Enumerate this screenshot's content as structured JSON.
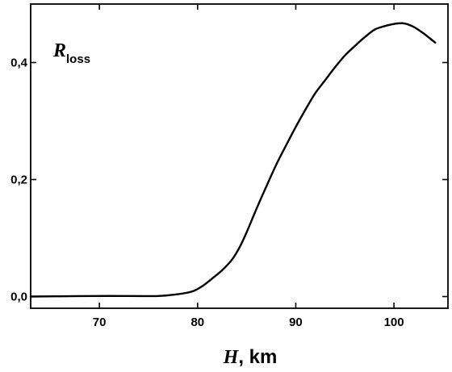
{
  "chart_data": {
    "type": "line",
    "title": "",
    "annotation": {
      "main": "R",
      "sub": "loss"
    },
    "xlabel": {
      "italic_part": "H",
      "rest": ", km"
    },
    "ylabel": "",
    "xlim": [
      63,
      105.5
    ],
    "ylim": [
      -0.02,
      0.5
    ],
    "x_ticks": [
      70,
      80,
      90,
      100
    ],
    "x_tick_labels": [
      "70",
      "80",
      "90",
      "100"
    ],
    "y_ticks": [
      0.0,
      0.2,
      0.4
    ],
    "y_tick_labels": [
      "0,0",
      "0,2",
      "0,4"
    ],
    "grid": false,
    "series": [
      {
        "color": "#000000",
        "x": [
          63,
          66,
          70,
          72,
          76,
          78,
          79.5,
          80.5,
          81.5,
          82.5,
          83.5,
          84.3,
          85,
          86,
          87,
          88,
          89,
          90,
          91,
          92,
          93,
          94,
          95,
          96,
          97,
          98,
          99,
          100,
          101,
          102,
          103,
          104.2
        ],
        "y": [
          0.0,
          0.0005,
          0.001,
          0.001,
          0.001,
          0.004,
          0.009,
          0.018,
          0.031,
          0.045,
          0.063,
          0.085,
          0.11,
          0.15,
          0.188,
          0.225,
          0.258,
          0.29,
          0.32,
          0.348,
          0.37,
          0.392,
          0.412,
          0.428,
          0.443,
          0.456,
          0.462,
          0.466,
          0.467,
          0.461,
          0.45,
          0.434
        ]
      }
    ]
  }
}
